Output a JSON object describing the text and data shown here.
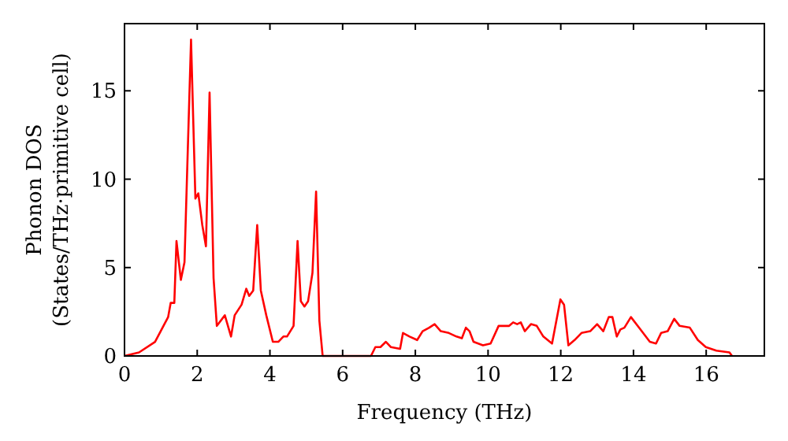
{
  "chart_data": {
    "type": "line",
    "xlabel": "Frequency (THz)",
    "ylabel": "Phonon DOS\n(States/THz·primitive cell)",
    "xlim": [
      0,
      17.6
    ],
    "ylim": [
      0,
      18.8
    ],
    "xticks": [
      0,
      2,
      4,
      6,
      8,
      10,
      12,
      14,
      16
    ],
    "yticks": [
      0,
      5,
      10,
      15
    ],
    "grid": false,
    "marker": "none",
    "line_style": "solid",
    "series": [
      {
        "color": "#ff0000",
        "x": [
          0,
          0.4,
          0.84,
          1.2,
          1.27,
          1.37,
          1.43,
          1.55,
          1.65,
          1.83,
          1.95,
          2.03,
          2.14,
          2.24,
          2.34,
          2.45,
          2.54,
          2.76,
          2.93,
          3.03,
          3.22,
          3.35,
          3.43,
          3.54,
          3.65,
          3.75,
          3.9,
          4.08,
          4.23,
          4.37,
          4.47,
          4.65,
          4.76,
          4.85,
          4.95,
          5.05,
          5.17,
          5.27,
          5.36,
          5.45,
          6.78,
          6.9,
          7.04,
          7.19,
          7.33,
          7.58,
          7.66,
          7.84,
          8.05,
          8.2,
          8.38,
          8.53,
          8.7,
          8.92,
          9.13,
          9.28,
          9.39,
          9.49,
          9.6,
          9.86,
          10.07,
          10.29,
          10.58,
          10.69,
          10.8,
          10.9,
          11.01,
          11.18,
          11.34,
          11.52,
          11.76,
          11.99,
          12.09,
          12.21,
          12.38,
          12.57,
          12.81,
          13.0,
          13.17,
          13.32,
          13.42,
          13.54,
          13.64,
          13.75,
          13.93,
          14.19,
          14.45,
          14.62,
          14.76,
          14.94,
          15.12,
          15.27,
          15.55,
          15.77,
          15.99,
          16.28,
          16.64,
          16.71
        ],
        "values": [
          0,
          0.2,
          0.8,
          2.2,
          3.0,
          3.0,
          6.5,
          4.3,
          5.3,
          17.9,
          8.9,
          9.2,
          7.4,
          6.2,
          14.9,
          4.4,
          1.7,
          2.3,
          1.1,
          2.3,
          2.9,
          3.8,
          3.4,
          3.7,
          7.4,
          3.7,
          2.3,
          0.8,
          0.8,
          1.1,
          1.1,
          1.7,
          6.5,
          3.1,
          2.8,
          3.1,
          4.7,
          9.3,
          2.0,
          0,
          0,
          0.5,
          0.5,
          0.8,
          0.5,
          0.4,
          1.3,
          1.1,
          0.9,
          1.4,
          1.6,
          1.8,
          1.4,
          1.3,
          1.1,
          1.0,
          1.6,
          1.4,
          0.8,
          0.6,
          0.7,
          1.7,
          1.7,
          1.9,
          1.8,
          1.9,
          1.4,
          1.8,
          1.7,
          1.1,
          0.7,
          3.2,
          2.9,
          0.6,
          0.9,
          1.3,
          1.4,
          1.8,
          1.4,
          2.2,
          2.2,
          1.1,
          1.5,
          1.6,
          2.2,
          1.5,
          0.8,
          0.7,
          1.3,
          1.4,
          2.1,
          1.7,
          1.6,
          0.9,
          0.5,
          0.3,
          0.2,
          0
        ]
      }
    ]
  }
}
